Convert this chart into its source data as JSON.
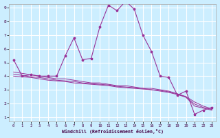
{
  "xlabel": "Windchill (Refroidissement éolien,°C)",
  "x_values": [
    0,
    1,
    2,
    3,
    4,
    5,
    6,
    7,
    8,
    9,
    10,
    11,
    12,
    13,
    14,
    15,
    16,
    17,
    18,
    19,
    20,
    21,
    22,
    23
  ],
  "line1": [
    5.2,
    4.0,
    4.1,
    4.0,
    4.0,
    4.0,
    5.5,
    6.8,
    5.2,
    5.3,
    7.6,
    9.2,
    8.8,
    9.5,
    8.9,
    7.0,
    5.8,
    4.0,
    3.9,
    2.6,
    2.9,
    1.2,
    1.5,
    1.7
  ],
  "line2": [
    4.3,
    4.2,
    4.1,
    4.0,
    3.9,
    3.8,
    3.8,
    3.7,
    3.6,
    3.5,
    3.5,
    3.4,
    3.3,
    3.3,
    3.2,
    3.1,
    3.1,
    3.0,
    2.9,
    2.7,
    2.5,
    2.1,
    1.8,
    1.6
  ],
  "line3": [
    4.0,
    3.95,
    3.9,
    3.8,
    3.7,
    3.65,
    3.6,
    3.5,
    3.45,
    3.4,
    3.35,
    3.3,
    3.2,
    3.15,
    3.1,
    3.05,
    3.0,
    2.9,
    2.8,
    2.65,
    2.45,
    1.8,
    1.65,
    1.5
  ],
  "line4": [
    4.15,
    4.05,
    3.95,
    3.9,
    3.8,
    3.7,
    3.65,
    3.6,
    3.5,
    3.45,
    3.4,
    3.35,
    3.25,
    3.2,
    3.15,
    3.1,
    3.0,
    2.95,
    2.85,
    2.7,
    2.45,
    1.95,
    1.7,
    1.55
  ],
  "line_color": "#993399",
  "bg_color": "#cceeff",
  "grid_color": "#ffffff",
  "ylim": [
    1,
    9
  ],
  "xlim": [
    -0.5,
    23.5
  ],
  "yticks": [
    1,
    2,
    3,
    4,
    5,
    6,
    7,
    8,
    9
  ],
  "xticks": [
    0,
    1,
    2,
    3,
    4,
    5,
    6,
    7,
    8,
    9,
    10,
    11,
    12,
    13,
    14,
    15,
    16,
    17,
    18,
    19,
    20,
    21,
    22,
    23
  ]
}
